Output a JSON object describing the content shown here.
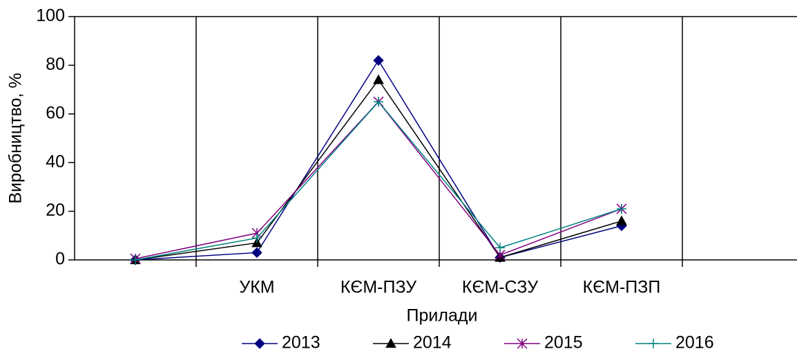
{
  "chart_data": {
    "type": "line",
    "xlabel": "Прилади",
    "ylabel": "Виробництво, %",
    "categories": [
      null,
      "УКМ",
      "КЄМ-ПЗУ",
      "КЄМ-СЗУ",
      "КЄМ-ПЗП",
      null
    ],
    "series": [
      {
        "name": "2013",
        "color": "#000080",
        "marker": "diamond",
        "values": [
          0,
          3,
          82,
          1,
          14,
          null
        ]
      },
      {
        "name": "2014",
        "color": "#000000",
        "marker": "triangle",
        "values": [
          0,
          7,
          74,
          1,
          16,
          null
        ]
      },
      {
        "name": "2015",
        "color": "#800080",
        "marker": "star",
        "values": [
          0.5,
          11,
          65,
          2,
          21,
          null
        ]
      },
      {
        "name": "2016",
        "color": "#008080",
        "marker": "plus",
        "values": [
          0,
          9,
          65,
          5,
          21,
          null
        ]
      }
    ],
    "ylim": [
      0,
      100
    ],
    "yticks": [
      0,
      20,
      40,
      60,
      80,
      100
    ],
    "grid": "x",
    "legend": "bottom"
  }
}
